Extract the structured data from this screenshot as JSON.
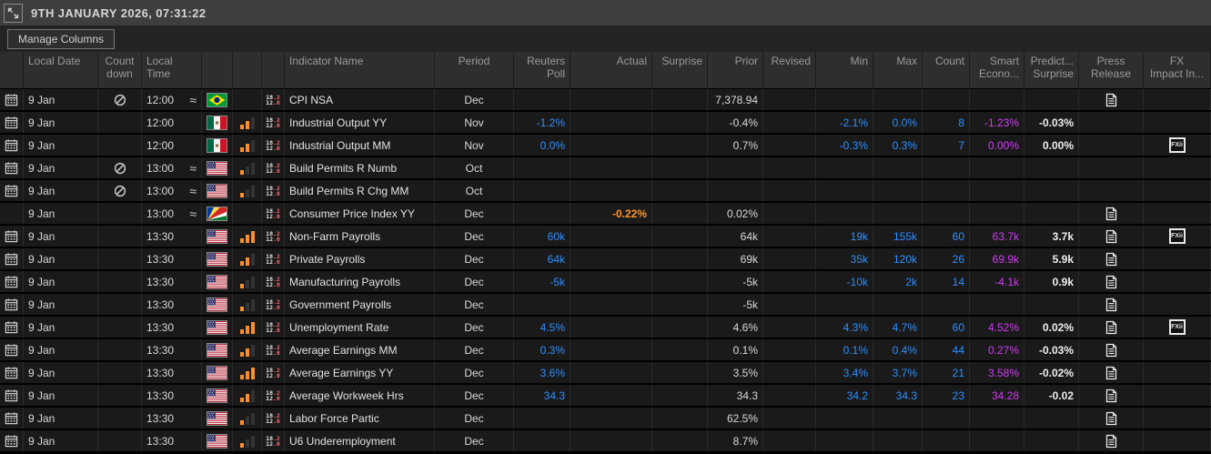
{
  "titlebar": {
    "title": "9TH JANUARY 2026, 07:31:22"
  },
  "toolbar": {
    "manage_columns_label": "Manage Columns"
  },
  "colors": {
    "accent_blue": "#2f8fff",
    "accent_magenta": "#cf3df2",
    "accent_orange": "#ff9430",
    "row_bg": "#1a1a1a",
    "header_bg": "#2e2e2e",
    "titlebar_bg": "#3e3e3e",
    "bar_orange": "#f98f2e"
  },
  "icons": {
    "expand": "expand-arrows-icon",
    "calendar": "calendar-event-icon",
    "countdown": "no-countdown-icon",
    "approx": "approximate-time-icon",
    "importance": "importance-bars-icon",
    "details": "indicator-details-icon",
    "press": "press-release-icon",
    "fx": "fx-impact-icon"
  },
  "table": {
    "columns": [
      {
        "id": "row-icon",
        "label": "",
        "align": "center"
      },
      {
        "id": "local-date",
        "label": "Local Date",
        "align": "left"
      },
      {
        "id": "countdown",
        "label": "Count\ndown",
        "align": "center"
      },
      {
        "id": "local-time",
        "label": "Local\nTime",
        "align": "left"
      },
      {
        "id": "flag",
        "label": "",
        "align": "center"
      },
      {
        "id": "importance",
        "label": "",
        "align": "center"
      },
      {
        "id": "details",
        "label": "",
        "align": "center"
      },
      {
        "id": "indicator-name",
        "label": "Indicator Name",
        "align": "left"
      },
      {
        "id": "period",
        "label": "Period",
        "align": "center"
      },
      {
        "id": "reuters-poll",
        "label": "Reuters\nPoll",
        "align": "right"
      },
      {
        "id": "actual",
        "label": "Actual",
        "align": "right"
      },
      {
        "id": "surprise",
        "label": "Surprise",
        "align": "right"
      },
      {
        "id": "prior",
        "label": "Prior",
        "align": "right"
      },
      {
        "id": "revised",
        "label": "Revised",
        "align": "right"
      },
      {
        "id": "min",
        "label": "Min",
        "align": "right"
      },
      {
        "id": "max",
        "label": "Max",
        "align": "right"
      },
      {
        "id": "count",
        "label": "Count",
        "align": "right"
      },
      {
        "id": "smart-economics",
        "label": "Smart\nEcono...",
        "align": "right"
      },
      {
        "id": "predicted-surprise",
        "label": "Predict...\nSurprise",
        "align": "right"
      },
      {
        "id": "press-release",
        "label": "Press\nRelease",
        "align": "center"
      },
      {
        "id": "fx-impact",
        "label": "FX\nImpact In...",
        "align": "center"
      }
    ],
    "details_icon_text": {
      "top": [
        "18",
        ".2"
      ],
      "bottom": [
        "12",
        ".0"
      ]
    },
    "fx_icon_label": "FXii",
    "rows": [
      {
        "calendar": true,
        "date": "9 Jan",
        "countdown": true,
        "time": "12:00",
        "approx": true,
        "flag": "br",
        "flag_name": "brazil",
        "importance": 0,
        "details": true,
        "indicator": "CPI NSA",
        "period": "Dec",
        "poll": "",
        "actual": "",
        "surprise": "",
        "prior": "7,378.94",
        "revised": "",
        "min": "",
        "max": "",
        "count": "",
        "smart": "",
        "predict": "",
        "press": true,
        "fx": false
      },
      {
        "calendar": true,
        "date": "9 Jan",
        "countdown": false,
        "time": "12:00",
        "approx": false,
        "flag": "mx",
        "flag_name": "mexico",
        "importance": 2,
        "details": true,
        "indicator": "Industrial Output YY",
        "period": "Nov",
        "poll": "-1.2%",
        "actual": "",
        "surprise": "",
        "prior": "-0.4%",
        "revised": "",
        "min": "-2.1%",
        "max": "0.0%",
        "count": "8",
        "smart": "-1.23%",
        "predict": "-0.03%",
        "press": false,
        "fx": false
      },
      {
        "calendar": true,
        "date": "9 Jan",
        "countdown": false,
        "time": "12:00",
        "approx": false,
        "flag": "mx",
        "flag_name": "mexico",
        "importance": 2,
        "details": true,
        "indicator": "Industrial Output MM",
        "period": "Nov",
        "poll": "0.0%",
        "actual": "",
        "surprise": "",
        "prior": "0.7%",
        "revised": "",
        "min": "-0.3%",
        "max": "0.3%",
        "count": "7",
        "smart": "0.00%",
        "predict": "0.00%",
        "press": false,
        "fx": true
      },
      {
        "calendar": true,
        "date": "9 Jan",
        "countdown": true,
        "time": "13:00",
        "approx": true,
        "flag": "us",
        "flag_name": "united-states",
        "importance": 1,
        "details": true,
        "indicator": "Build Permits R Numb",
        "period": "Oct",
        "poll": "",
        "actual": "",
        "surprise": "",
        "prior": "",
        "revised": "",
        "min": "",
        "max": "",
        "count": "",
        "smart": "",
        "predict": "",
        "press": false,
        "fx": false
      },
      {
        "calendar": true,
        "date": "9 Jan",
        "countdown": true,
        "time": "13:00",
        "approx": true,
        "flag": "us",
        "flag_name": "united-states",
        "importance": 1,
        "details": true,
        "indicator": "Build Permits R Chg MM",
        "period": "Oct",
        "poll": "",
        "actual": "",
        "surprise": "",
        "prior": "",
        "revised": "",
        "min": "",
        "max": "",
        "count": "",
        "smart": "",
        "predict": "",
        "press": false,
        "fx": false
      },
      {
        "calendar": false,
        "date": "9 Jan",
        "countdown": false,
        "time": "13:00",
        "approx": true,
        "flag": "sc",
        "flag_name": "seychelles",
        "importance": 0,
        "details": true,
        "indicator": "Consumer Price Index YY",
        "period": "Dec",
        "poll": "",
        "actual": "-0.22%",
        "surprise": "",
        "prior": "0.02%",
        "revised": "",
        "min": "",
        "max": "",
        "count": "",
        "smart": "",
        "predict": "",
        "press": true,
        "fx": false
      },
      {
        "calendar": true,
        "date": "9 Jan",
        "countdown": false,
        "time": "13:30",
        "approx": false,
        "flag": "us",
        "flag_name": "united-states",
        "importance": 3,
        "details": true,
        "indicator": "Non-Farm Payrolls",
        "period": "Dec",
        "poll": "60k",
        "actual": "",
        "surprise": "",
        "prior": "64k",
        "revised": "",
        "min": "19k",
        "max": "155k",
        "count": "60",
        "smart": "63.7k",
        "predict": "3.7k",
        "press": true,
        "fx": true
      },
      {
        "calendar": true,
        "date": "9 Jan",
        "countdown": false,
        "time": "13:30",
        "approx": false,
        "flag": "us",
        "flag_name": "united-states",
        "importance": 2,
        "details": true,
        "indicator": "Private Payrolls",
        "period": "Dec",
        "poll": "64k",
        "actual": "",
        "surprise": "",
        "prior": "69k",
        "revised": "",
        "min": "35k",
        "max": "120k",
        "count": "26",
        "smart": "69.9k",
        "predict": "5.9k",
        "press": true,
        "fx": false
      },
      {
        "calendar": true,
        "date": "9 Jan",
        "countdown": false,
        "time": "13:30",
        "approx": false,
        "flag": "us",
        "flag_name": "united-states",
        "importance": 1,
        "details": true,
        "indicator": "Manufacturing Payrolls",
        "period": "Dec",
        "poll": "-5k",
        "actual": "",
        "surprise": "",
        "prior": "-5k",
        "revised": "",
        "min": "-10k",
        "max": "2k",
        "count": "14",
        "smart": "-4.1k",
        "predict": "0.9k",
        "press": true,
        "fx": false
      },
      {
        "calendar": true,
        "date": "9 Jan",
        "countdown": false,
        "time": "13:30",
        "approx": false,
        "flag": "us",
        "flag_name": "united-states",
        "importance": 1,
        "details": true,
        "indicator": "Government Payrolls",
        "period": "Dec",
        "poll": "",
        "actual": "",
        "surprise": "",
        "prior": "-5k",
        "revised": "",
        "min": "",
        "max": "",
        "count": "",
        "smart": "",
        "predict": "",
        "press": true,
        "fx": false
      },
      {
        "calendar": true,
        "date": "9 Jan",
        "countdown": false,
        "time": "13:30",
        "approx": false,
        "flag": "us",
        "flag_name": "united-states",
        "importance": 3,
        "details": true,
        "indicator": "Unemployment Rate",
        "period": "Dec",
        "poll": "4.5%",
        "actual": "",
        "surprise": "",
        "prior": "4.6%",
        "revised": "",
        "min": "4.3%",
        "max": "4.7%",
        "count": "60",
        "smart": "4.52%",
        "predict": "0.02%",
        "press": true,
        "fx": true
      },
      {
        "calendar": true,
        "date": "9 Jan",
        "countdown": false,
        "time": "13:30",
        "approx": false,
        "flag": "us",
        "flag_name": "united-states",
        "importance": 2,
        "details": true,
        "indicator": "Average Earnings MM",
        "period": "Dec",
        "poll": "0.3%",
        "actual": "",
        "surprise": "",
        "prior": "0.1%",
        "revised": "",
        "min": "0.1%",
        "max": "0.4%",
        "count": "44",
        "smart": "0.27%",
        "predict": "-0.03%",
        "press": true,
        "fx": false
      },
      {
        "calendar": true,
        "date": "9 Jan",
        "countdown": false,
        "time": "13:30",
        "approx": false,
        "flag": "us",
        "flag_name": "united-states",
        "importance": 3,
        "details": true,
        "indicator": "Average Earnings YY",
        "period": "Dec",
        "poll": "3.6%",
        "actual": "",
        "surprise": "",
        "prior": "3.5%",
        "revised": "",
        "min": "3.4%",
        "max": "3.7%",
        "count": "21",
        "smart": "3.58%",
        "predict": "-0.02%",
        "press": true,
        "fx": false
      },
      {
        "calendar": true,
        "date": "9 Jan",
        "countdown": false,
        "time": "13:30",
        "approx": false,
        "flag": "us",
        "flag_name": "united-states",
        "importance": 2,
        "details": true,
        "indicator": "Average Workweek Hrs",
        "period": "Dec",
        "poll": "34.3",
        "actual": "",
        "surprise": "",
        "prior": "34.3",
        "revised": "",
        "min": "34.2",
        "max": "34.3",
        "count": "23",
        "smart": "34.28",
        "predict": "-0.02",
        "press": true,
        "fx": false
      },
      {
        "calendar": true,
        "date": "9 Jan",
        "countdown": false,
        "time": "13:30",
        "approx": false,
        "flag": "us",
        "flag_name": "united-states",
        "importance": 1,
        "details": true,
        "indicator": "Labor Force Partic",
        "period": "Dec",
        "poll": "",
        "actual": "",
        "surprise": "",
        "prior": "62.5%",
        "revised": "",
        "min": "",
        "max": "",
        "count": "",
        "smart": "",
        "predict": "",
        "press": true,
        "fx": false
      },
      {
        "calendar": true,
        "date": "9 Jan",
        "countdown": false,
        "time": "13:30",
        "approx": false,
        "flag": "us",
        "flag_name": "united-states",
        "importance": 1,
        "details": true,
        "indicator": "U6 Underemployment",
        "period": "Dec",
        "poll": "",
        "actual": "",
        "surprise": "",
        "prior": "8.7%",
        "revised": "",
        "min": "",
        "max": "",
        "count": "",
        "smart": "",
        "predict": "",
        "press": true,
        "fx": false
      }
    ]
  }
}
